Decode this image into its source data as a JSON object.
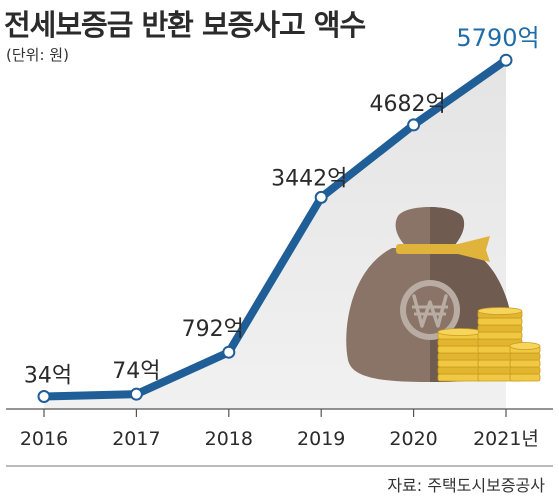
{
  "chart_title": "전세보증금 반환 보증사고 액수",
  "unit_note": "(단위: 원)",
  "source_note": "자료: 주택도시보증공사",
  "chart_data": {
    "type": "line",
    "x": [
      "2016",
      "2017",
      "2018",
      "2019",
      "2020",
      "2021년"
    ],
    "series": [
      {
        "values": [
          34,
          74,
          792,
          3442,
          4682,
          5790
        ],
        "labels": [
          "34억",
          "74억",
          "792억",
          "3442억",
          "4682억",
          "5790억"
        ]
      }
    ],
    "ylim": [
      -180,
      6050
    ],
    "grid": false,
    "legend": "none",
    "colors": {
      "line": "#1f5e97",
      "marker_fill": "#ffffff",
      "area_fill": "#ececec",
      "axis": "#555555",
      "last_label": "#1f6da8",
      "label": "#2b2b2b"
    }
  }
}
